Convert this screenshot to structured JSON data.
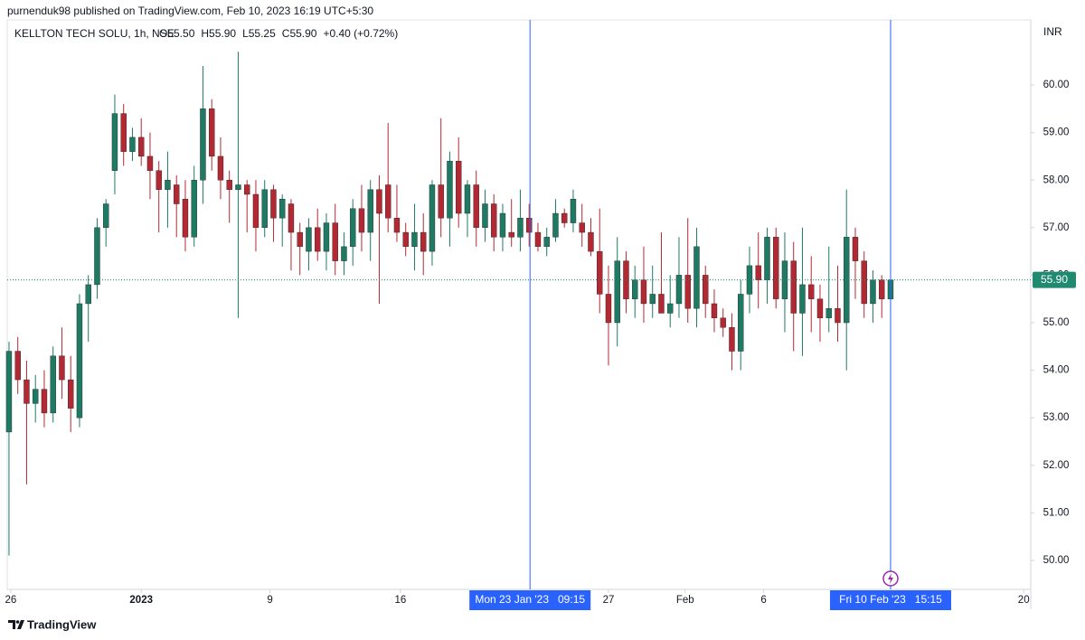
{
  "header": "purnenduk98 published on TradingView.com, Feb 10, 2023 16:19 UTC+5:30",
  "footer": "TradingView",
  "chart_data": {
    "type": "candlestick",
    "symbol": "KELLTON TECH SOLU, 1h, NSE",
    "ohlc_legend": [
      "O55.50",
      "H55.90",
      "L55.25",
      "C55.90",
      "+0.40 (+0.72%)"
    ],
    "y_axis_unit": "INR",
    "series": [
      {
        "up_color": "#1f7a63",
        "down_color": "#b22833",
        "open": [
          52.7,
          54.4,
          53.8,
          53.3,
          53.6,
          53.1,
          54.3,
          53.8,
          53.0,
          55.4,
          55.8,
          57.0,
          58.2,
          59.4,
          58.6,
          58.9,
          58.5,
          58.2,
          57.8,
          57.9,
          57.6,
          56.8,
          58.0,
          59.5,
          58.5,
          58.0,
          57.8,
          57.9,
          57.7,
          57.0,
          57.8,
          57.2,
          57.5,
          56.9,
          56.5,
          57.0,
          56.5,
          57.1,
          56.3,
          56.6,
          57.4,
          56.9,
          57.8,
          57.9,
          57.2,
          56.9,
          56.6,
          56.9,
          56.5,
          57.9,
          57.2,
          58.4,
          57.3,
          57.9,
          57.0,
          57.5,
          56.8,
          56.9,
          56.8,
          57.2,
          56.9,
          56.6,
          56.8,
          57.3,
          57.1,
          57.1,
          56.9,
          56.5,
          55.6,
          55.0,
          56.3,
          55.5,
          55.9,
          55.4,
          55.6,
          55.2,
          55.4,
          56.0,
          55.3,
          56.0,
          55.4,
          55.1,
          54.9,
          54.4,
          55.6,
          56.2,
          55.9,
          56.8,
          55.5,
          56.3,
          55.2,
          55.8,
          55.5,
          55.1,
          55.3,
          55.0,
          56.8,
          56.3,
          55.4,
          55.9,
          55.5
        ],
        "high": [
          54.6,
          54.7,
          54.2,
          53.9,
          54.0,
          54.5,
          54.9,
          54.3,
          55.6,
          56.0,
          57.2,
          57.6,
          59.8,
          59.6,
          59.1,
          59.3,
          59.0,
          58.4,
          58.6,
          58.1,
          58.0,
          58.3,
          60.4,
          59.7,
          58.9,
          58.2,
          60.7,
          58.0,
          58.0,
          58.0,
          57.9,
          57.7,
          57.6,
          57.1,
          57.2,
          57.4,
          57.3,
          57.5,
          56.9,
          57.6,
          57.9,
          58.0,
          58.1,
          59.2,
          57.9,
          57.1,
          57.5,
          57.3,
          58.0,
          59.3,
          58.6,
          58.9,
          58.0,
          58.2,
          57.8,
          57.7,
          57.5,
          57.6,
          57.8,
          57.5,
          57.1,
          57.0,
          57.6,
          57.4,
          57.8,
          57.5,
          57.2,
          57.4,
          56.2,
          56.8,
          56.5,
          56.2,
          56.6,
          56.2,
          56.9,
          56.0,
          56.8,
          57.2,
          57.0,
          56.2,
          55.7,
          55.3,
          55.2,
          55.9,
          56.6,
          56.9,
          57.0,
          57.0,
          56.9,
          56.7,
          57.0,
          56.4,
          55.8,
          56.6,
          56.2,
          57.8,
          57.0,
          56.5,
          56.1,
          56.0,
          55.9
        ],
        "low": [
          50.1,
          53.5,
          51.6,
          52.9,
          52.8,
          52.9,
          53.4,
          52.7,
          52.8,
          54.6,
          55.5,
          56.6,
          57.7,
          58.3,
          58.4,
          58.3,
          57.6,
          56.9,
          57.0,
          56.8,
          56.5,
          56.6,
          57.5,
          58.2,
          57.6,
          57.1,
          55.1,
          56.9,
          56.5,
          56.8,
          56.7,
          56.6,
          56.1,
          56.0,
          56.1,
          56.3,
          56.1,
          56.0,
          56.0,
          56.2,
          56.5,
          56.3,
          55.4,
          56.9,
          56.7,
          56.4,
          56.1,
          56.0,
          56.2,
          56.8,
          56.6,
          57.0,
          56.8,
          56.6,
          56.7,
          56.5,
          56.5,
          56.6,
          56.5,
          56.6,
          56.5,
          56.4,
          56.7,
          57.0,
          56.9,
          56.6,
          56.4,
          55.2,
          54.1,
          54.5,
          55.2,
          55.1,
          55.0,
          55.1,
          55.3,
          54.9,
          55.1,
          55.0,
          54.9,
          55.1,
          54.8,
          54.7,
          54.0,
          54.0,
          55.2,
          55.3,
          55.4,
          55.3,
          54.8,
          54.4,
          54.3,
          54.8,
          54.6,
          54.8,
          54.6,
          54.0,
          55.5,
          55.1,
          55.0,
          55.1,
          55.25
        ],
        "close": [
          54.4,
          53.8,
          53.3,
          53.6,
          53.1,
          54.3,
          53.8,
          53.2,
          55.4,
          55.8,
          57.0,
          57.5,
          59.4,
          58.6,
          58.9,
          58.5,
          58.2,
          57.8,
          58.0,
          57.5,
          56.8,
          58.0,
          59.5,
          58.5,
          58.0,
          57.8,
          57.9,
          57.7,
          57.0,
          57.8,
          57.2,
          57.6,
          56.9,
          56.6,
          57.0,
          56.5,
          57.1,
          56.3,
          56.6,
          57.4,
          56.9,
          57.8,
          57.3,
          57.2,
          56.9,
          56.6,
          56.9,
          56.5,
          57.9,
          57.2,
          58.4,
          57.3,
          57.9,
          57.0,
          57.5,
          56.8,
          57.3,
          56.8,
          57.2,
          56.9,
          56.6,
          56.8,
          57.3,
          57.1,
          57.6,
          56.9,
          56.5,
          55.6,
          55.0,
          56.3,
          55.5,
          55.9,
          55.4,
          55.6,
          55.2,
          55.4,
          56.0,
          55.3,
          56.6,
          55.4,
          55.1,
          54.9,
          54.4,
          55.6,
          56.2,
          55.9,
          56.8,
          55.5,
          56.3,
          55.2,
          55.8,
          55.5,
          55.1,
          55.3,
          55.0,
          56.8,
          56.3,
          55.4,
          55.9,
          55.5,
          55.9
        ]
      }
    ],
    "last_price": {
      "value": 55.9,
      "label": "55.90"
    },
    "last_price_color": "#1f8a70",
    "crosshairs": [
      {
        "value": 59.1,
        "label": "Mon 23 Jan '23   09:15"
      },
      {
        "value": 100,
        "label": "Fri 10 Feb '23   15:15"
      }
    ],
    "crosshair_color": "#2962ff",
    "xlim": [
      -0.2,
      115.9
    ],
    "xticks": [
      {
        "value": 0.2,
        "label": "26"
      },
      {
        "value": 15.0,
        "label": "2023"
      },
      {
        "value": 29.6,
        "label": "9"
      },
      {
        "value": 44.4,
        "label": "16"
      },
      {
        "value": 68.0,
        "label": "27"
      },
      {
        "value": 76.7,
        "label": "Feb"
      },
      {
        "value": 85.6,
        "label": "6"
      },
      {
        "value": 115.1,
        "label": "20"
      }
    ],
    "ylim": [
      49.39,
      61.37
    ],
    "yticks": [
      {
        "value": 50,
        "label": "50.00"
      },
      {
        "value": 51,
        "label": "51.00"
      },
      {
        "value": 52,
        "label": "52.00"
      },
      {
        "value": 53,
        "label": "53.00"
      },
      {
        "value": 54,
        "label": "54.00"
      },
      {
        "value": 55,
        "label": "55.00"
      },
      {
        "value": 56,
        "label": "56.00"
      },
      {
        "value": 57,
        "label": "57.00"
      },
      {
        "value": 58,
        "label": "58.00"
      },
      {
        "value": 59,
        "label": "59.00"
      },
      {
        "value": 60,
        "label": "60.00"
      }
    ],
    "grid": false
  }
}
